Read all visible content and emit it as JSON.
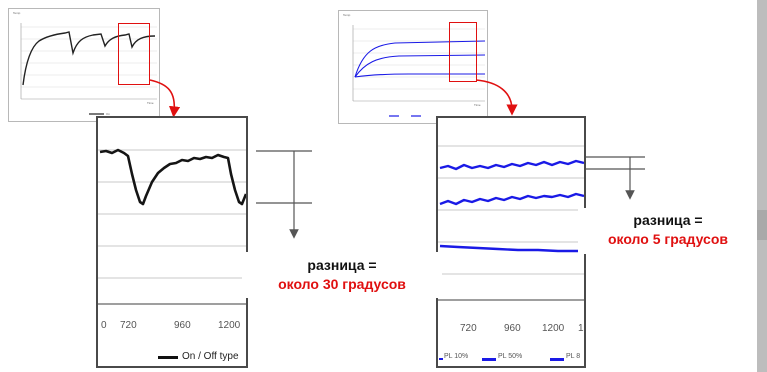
{
  "left": {
    "thumb": {
      "y_title": "Temp",
      "x_title": "Time",
      "legend": "On"
    },
    "zoom": {
      "x_ticks": [
        "0",
        "720",
        "960",
        "1200"
      ],
      "legend": "On / Off  type"
    },
    "note": {
      "line1": "разница =",
      "line2": "около 30 градусов"
    }
  },
  "right": {
    "thumb": {
      "y_title": "Temp",
      "x_title": "Time"
    },
    "zoom": {
      "x_ticks": [
        "720",
        "960",
        "1200",
        "1"
      ],
      "legend_items": [
        "PL 10%",
        "PL 50%",
        "PL 8"
      ]
    },
    "note": {
      "line1": "разница =",
      "line2": "около 5 градусов"
    }
  },
  "colors": {
    "highlight": "#e01010",
    "series_left": "#111111",
    "series_right": "#1a1ae6"
  }
}
